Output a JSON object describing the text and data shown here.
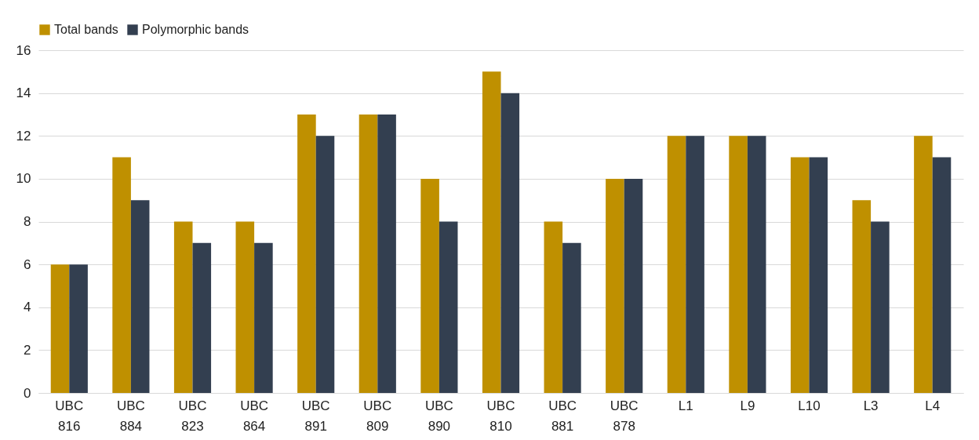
{
  "chart_data": {
    "type": "bar",
    "categories": [
      "UBC 816",
      "UBC 884",
      "UBC 823",
      "UBC 864",
      "UBC 891",
      "UBC 809",
      "UBC 890",
      "UBC 810",
      "UBC 881",
      "UBC 878",
      "L1",
      "L9",
      "L10",
      "L3",
      "L4"
    ],
    "series": [
      {
        "name": "Total bands",
        "color": "#bf9000",
        "values": [
          6,
          11,
          8,
          8,
          13,
          13,
          10,
          15,
          8,
          10,
          12,
          12,
          11,
          9,
          12
        ]
      },
      {
        "name": "Polymorphic bands",
        "color": "#333f50",
        "values": [
          6,
          9,
          7,
          7,
          12,
          13,
          8,
          14,
          7,
          10,
          12,
          12,
          11,
          8,
          11
        ]
      }
    ],
    "ylim": [
      0,
      16
    ],
    "yticks": [
      0,
      2,
      4,
      6,
      8,
      10,
      12,
      14,
      16
    ],
    "grid": "y",
    "legend": "top"
  }
}
